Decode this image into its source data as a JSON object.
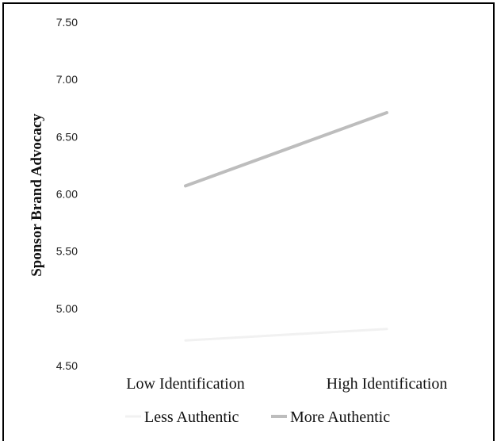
{
  "chart_data": {
    "type": "line",
    "title": "",
    "xlabel": "",
    "ylabel": "Sponsor Brand Advocacy",
    "categories": [
      "Low  Identification",
      "High Identification"
    ],
    "ylim": [
      4.5,
      7.5
    ],
    "yticks": [
      "4.50",
      "5.00",
      "5.50",
      "6.00",
      "6.50",
      "7.00",
      "7.50"
    ],
    "ytick_values": [
      4.5,
      5.0,
      5.5,
      6.0,
      6.5,
      7.0,
      7.5
    ],
    "grid": false,
    "legend_position": "bottom",
    "series": [
      {
        "name": "Less Authentic",
        "values": [
          4.72,
          4.82
        ],
        "color": "#f1f1f1"
      },
      {
        "name": "More Authentic",
        "values": [
          6.07,
          6.71
        ],
        "color": "#bdbdbd"
      }
    ]
  }
}
